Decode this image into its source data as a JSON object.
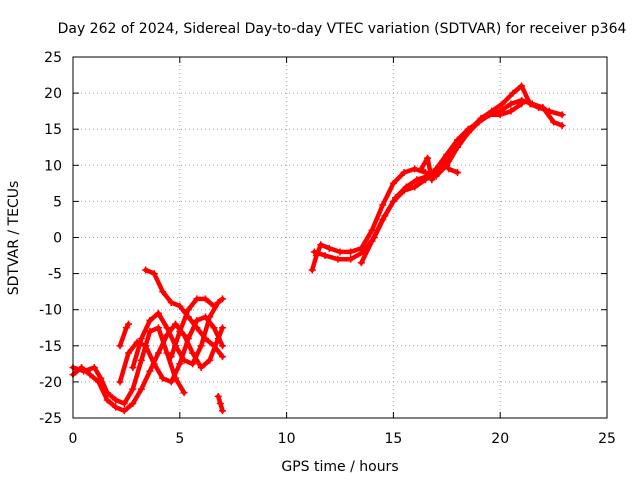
{
  "chart_data": {
    "type": "scatter",
    "title": "Day 262 of 2024, Sidereal Day-to-day VTEC variation (SDTVAR) for receiver p364",
    "xlabel": "GPS time / hours",
    "ylabel": "SDTVAR / TECUs",
    "xlim": [
      0,
      25
    ],
    "ylim": [
      -25,
      25
    ],
    "xticks": [
      "0",
      "5",
      "10",
      "15",
      "20",
      "25"
    ],
    "yticks": [
      "-25",
      "-20",
      "-15",
      "-10",
      "-5",
      "0",
      "5",
      "10",
      "15",
      "20",
      "25"
    ],
    "grid": true,
    "marker": "plus",
    "color": "#ff0000",
    "series": [
      {
        "tracks": [
          [
            [
              0.0,
              -18.0
            ],
            [
              0.5,
              -18.5
            ],
            [
              1.0,
              -18.0
            ],
            [
              1.3,
              -19.5
            ],
            [
              1.6,
              -21.5
            ],
            [
              2.0,
              -22.5
            ],
            [
              2.4,
              -23.0
            ],
            [
              2.8,
              -21.0
            ],
            [
              3.2,
              -17.0
            ],
            [
              3.6,
              -13.0
            ],
            [
              4.0,
              -12.5
            ],
            [
              4.4,
              -16.0
            ],
            [
              4.8,
              -19.5
            ],
            [
              5.2,
              -21.5
            ]
          ],
          [
            [
              0.0,
              -19.0
            ],
            [
              0.4,
              -18.0
            ],
            [
              0.8,
              -19.0
            ],
            [
              1.2,
              -20.0
            ],
            [
              1.6,
              -22.5
            ],
            [
              2.0,
              -23.5
            ],
            [
              2.4,
              -24.0
            ],
            [
              2.8,
              -23.0
            ],
            [
              3.2,
              -21.0
            ],
            [
              3.6,
              -18.5
            ],
            [
              4.0,
              -16.0
            ],
            [
              4.4,
              -13.5
            ],
            [
              4.8,
              -12.0
            ],
            [
              5.2,
              -13.5
            ],
            [
              5.6,
              -16.0
            ],
            [
              6.0,
              -18.0
            ],
            [
              6.4,
              -17.0
            ],
            [
              6.8,
              -14.0
            ],
            [
              7.0,
              -12.5
            ]
          ],
          [
            [
              2.2,
              -20.0
            ],
            [
              2.6,
              -16.0
            ],
            [
              3.0,
              -14.5
            ],
            [
              3.4,
              -15.0
            ],
            [
              3.8,
              -17.5
            ],
            [
              4.2,
              -19.5
            ],
            [
              4.6,
              -20.0
            ],
            [
              5.0,
              -17.5
            ],
            [
              5.4,
              -14.0
            ],
            [
              5.8,
              -11.5
            ],
            [
              6.2,
              -11.0
            ],
            [
              6.6,
              -12.5
            ],
            [
              7.0,
              -15.0
            ]
          ],
          [
            [
              2.2,
              -15.0
            ],
            [
              2.5,
              -12.5
            ],
            [
              2.6,
              -12.0
            ]
          ],
          [
            [
              3.4,
              -4.5
            ],
            [
              3.8,
              -5.0
            ],
            [
              4.2,
              -7.5
            ],
            [
              4.6,
              -9.0
            ],
            [
              5.0,
              -9.5
            ],
            [
              5.4,
              -11.0
            ],
            [
              5.8,
              -12.5
            ],
            [
              6.2,
              -14.0
            ],
            [
              6.6,
              -15.0
            ],
            [
              7.0,
              -16.5
            ]
          ],
          [
            [
              2.8,
              -18.0
            ],
            [
              3.2,
              -14.0
            ],
            [
              3.6,
              -11.5
            ],
            [
              4.0,
              -10.5
            ],
            [
              4.4,
              -12.5
            ],
            [
              4.8,
              -15.0
            ],
            [
              5.2,
              -17.0
            ],
            [
              5.6,
              -17.5
            ],
            [
              6.0,
              -15.0
            ],
            [
              6.4,
              -11.0
            ],
            [
              6.8,
              -9.0
            ],
            [
              7.0,
              -8.5
            ]
          ],
          [
            [
              4.6,
              -16.5
            ],
            [
              5.0,
              -13.0
            ],
            [
              5.4,
              -10.0
            ],
            [
              5.8,
              -8.5
            ],
            [
              6.2,
              -8.5
            ],
            [
              6.6,
              -9.5
            ]
          ],
          [
            [
              6.8,
              -22.0
            ],
            [
              6.9,
              -23.0
            ],
            [
              7.0,
              -24.0
            ]
          ]
        ]
      },
      {
        "tracks": [
          [
            [
              11.2,
              -4.5
            ],
            [
              11.4,
              -2.5
            ],
            [
              11.6,
              -1.0
            ],
            [
              12.0,
              -1.5
            ],
            [
              12.5,
              -2.0
            ],
            [
              13.0,
              -2.0
            ],
            [
              13.5,
              -1.5
            ],
            [
              14.0,
              1.0
            ],
            [
              14.5,
              4.5
            ],
            [
              15.0,
              7.5
            ],
            [
              15.5,
              9.0
            ],
            [
              16.0,
              9.5
            ],
            [
              16.5,
              9.0
            ],
            [
              17.0,
              8.5
            ],
            [
              17.5,
              10.0
            ],
            [
              18.0,
              12.5
            ],
            [
              18.5,
              14.5
            ],
            [
              19.0,
              16.0
            ],
            [
              19.5,
              17.0
            ],
            [
              20.0,
              17.5
            ],
            [
              20.5,
              18.5
            ],
            [
              21.0,
              19.0
            ],
            [
              21.5,
              18.5
            ],
            [
              22.0,
              18.0
            ],
            [
              22.5,
              16.0
            ],
            [
              22.9,
              15.5
            ]
          ],
          [
            [
              11.3,
              -2.0
            ],
            [
              11.8,
              -2.5
            ],
            [
              12.4,
              -3.0
            ],
            [
              13.0,
              -3.0
            ],
            [
              13.6,
              -2.0
            ],
            [
              14.1,
              0.0
            ],
            [
              14.6,
              3.0
            ],
            [
              15.1,
              5.5
            ],
            [
              15.6,
              7.0
            ],
            [
              16.1,
              8.0
            ],
            [
              16.6,
              8.5
            ],
            [
              17.1,
              9.0
            ],
            [
              17.6,
              11.0
            ],
            [
              18.1,
              13.0
            ],
            [
              18.6,
              15.0
            ],
            [
              19.1,
              16.5
            ],
            [
              19.6,
              17.5
            ],
            [
              20.1,
              18.5
            ],
            [
              20.6,
              20.0
            ],
            [
              21.0,
              21.0
            ],
            [
              21.4,
              18.5
            ],
            [
              21.8,
              18.0
            ],
            [
              22.3,
              17.5
            ],
            [
              22.9,
              17.0
            ]
          ],
          [
            [
              13.5,
              -3.5
            ],
            [
              14.0,
              -0.5
            ],
            [
              14.5,
              2.5
            ],
            [
              15.0,
              5.0
            ],
            [
              15.5,
              6.5
            ],
            [
              16.0,
              7.0
            ],
            [
              16.5,
              8.0
            ],
            [
              17.0,
              9.5
            ],
            [
              17.5,
              11.5
            ],
            [
              18.0,
              13.5
            ],
            [
              18.5,
              15.0
            ],
            [
              19.0,
              16.0
            ],
            [
              19.5,
              17.0
            ],
            [
              20.0,
              17.0
            ],
            [
              20.5,
              17.5
            ],
            [
              21.0,
              18.5
            ]
          ],
          [
            [
              16.3,
              9.5
            ],
            [
              16.6,
              11.0
            ],
            [
              16.8,
              8.0
            ],
            [
              17.0,
              9.0
            ]
          ],
          [
            [
              17.3,
              10.5
            ],
            [
              17.6,
              9.5
            ],
            [
              18.0,
              9.0
            ]
          ]
        ]
      }
    ]
  }
}
